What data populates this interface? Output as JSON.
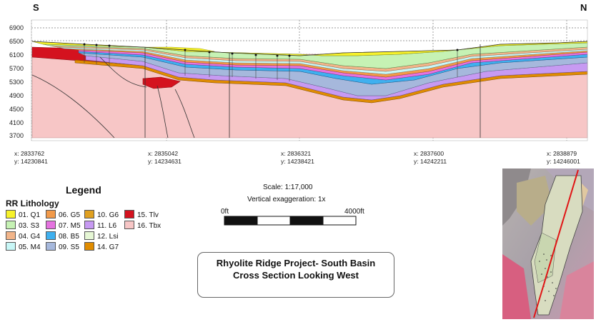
{
  "directions": {
    "left": "S",
    "right": "N"
  },
  "elevation_labels": [
    "6900",
    "6500",
    "6100",
    "5700",
    "5300",
    "4900",
    "4500",
    "4100",
    "3700"
  ],
  "coordinates": [
    {
      "x": "x: 2833762",
      "y": "y: 14230841"
    },
    {
      "x": "x: 2835042",
      "y": "y: 14234631"
    },
    {
      "x": "x: 2836321",
      "y": "y: 14238421"
    },
    {
      "x": "x: 2837600",
      "y": "y: 14242211"
    },
    {
      "x": "x: 2838879",
      "y": "y: 14246001"
    }
  ],
  "legend": {
    "title": "Legend",
    "subtitle": "RR Lithology",
    "items": [
      {
        "label": "01. Q1",
        "color": "#f7f22a"
      },
      {
        "label": "03. S3",
        "color": "#c6f2b4"
      },
      {
        "label": "04. G4",
        "color": "#f2b58a"
      },
      {
        "label": "05. M4",
        "color": "#c8f7f7"
      },
      {
        "label": "06. G5",
        "color": "#f29a4a"
      },
      {
        "label": "07. M5",
        "color": "#e573e0"
      },
      {
        "label": "08. B5",
        "color": "#3fb0ef"
      },
      {
        "label": "09. S5",
        "color": "#a6b8dc"
      },
      {
        "label": "10. G6",
        "color": "#e0a020"
      },
      {
        "label": "11. L6",
        "color": "#c79af2"
      },
      {
        "label": "12. Lsi",
        "color": "#e6f7d5"
      },
      {
        "label": "14. G7",
        "color": "#e08c00"
      },
      {
        "label": "15. Tlv",
        "color": "#d4121f"
      },
      {
        "label": "16. Tbx",
        "color": "#f7c6c6"
      }
    ]
  },
  "scale": {
    "text": "Scale: 1:17,000",
    "vertical_exaggeration": "Vertical exaggeration: 1x",
    "bar_start": "0ft",
    "bar_end": "4000ft"
  },
  "title": {
    "line1": "Rhyolite Ridge Project- South Basin",
    "line2": "Cross Section Looking West"
  }
}
